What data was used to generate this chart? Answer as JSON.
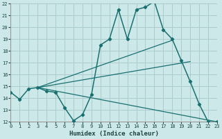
{
  "xlabel": "Humidex (Indice chaleur)",
  "ylabel": "",
  "xlim": [
    0,
    23
  ],
  "ylim": [
    12,
    22
  ],
  "xticks": [
    0,
    1,
    2,
    3,
    4,
    5,
    6,
    7,
    8,
    9,
    10,
    11,
    12,
    13,
    14,
    15,
    16,
    17,
    18,
    19,
    20,
    21,
    22,
    23
  ],
  "yticks": [
    12,
    13,
    14,
    15,
    16,
    17,
    18,
    19,
    20,
    21,
    22
  ],
  "background_color": "#cce8e8",
  "grid_color": "#aacccc",
  "line_color": "#1a7070",
  "line1_x": [
    0,
    1,
    2,
    3,
    4,
    5,
    6,
    7,
    8,
    9,
    10,
    11,
    12,
    13,
    14,
    15,
    16,
    17,
    18,
    19,
    20,
    21,
    22,
    23
  ],
  "line1_y": [
    14.5,
    13.9,
    14.8,
    14.9,
    14.6,
    14.5,
    13.2,
    12.1,
    12.6,
    14.3,
    18.5,
    19.0,
    21.5,
    19.0,
    21.5,
    21.7,
    22.2,
    19.8,
    19.0,
    17.2,
    15.4,
    13.5,
    12.0,
    12.0
  ],
  "line2_x": [
    3,
    23
  ],
  "line2_y": [
    14.9,
    12.0
  ],
  "line3_x": [
    3,
    18
  ],
  "line3_y": [
    14.9,
    18.9
  ],
  "line4_x": [
    3,
    20
  ],
  "line4_y": [
    14.9,
    17.1
  ]
}
